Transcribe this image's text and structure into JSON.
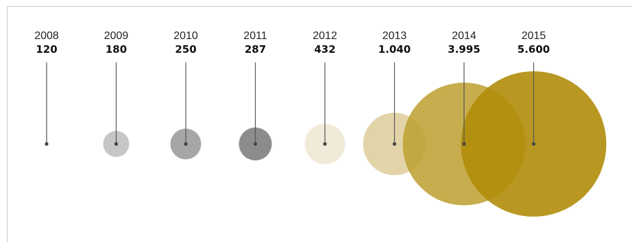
{
  "chart_data": {
    "type": "bubble-timeline",
    "title": "",
    "xlabel": "",
    "ylabel": "",
    "points": [
      {
        "year": "2008",
        "value": 120,
        "value_label": "120",
        "color": "#9a9a9a",
        "opacity": 0.0
      },
      {
        "year": "2009",
        "value": 180,
        "value_label": "180",
        "color": "#c6c6c6",
        "opacity": 1.0
      },
      {
        "year": "2010",
        "value": 250,
        "value_label": "250",
        "color": "#a6a6a6",
        "opacity": 1.0
      },
      {
        "year": "2011",
        "value": 287,
        "value_label": "287",
        "color": "#8c8c8c",
        "opacity": 1.0
      },
      {
        "year": "2012",
        "value": 432,
        "value_label": "432",
        "color": "#f0ead8",
        "opacity": 1.0
      },
      {
        "year": "2013",
        "value": 1040,
        "value_label": "1.040",
        "color": "#ddcc99",
        "opacity": 0.85
      },
      {
        "year": "2014",
        "value": 3995,
        "value_label": "3.995",
        "color": "#bd9f2e",
        "opacity": 0.85
      },
      {
        "year": "2015",
        "value": 5600,
        "value_label": "5.600",
        "color": "#b08d0a",
        "opacity": 0.9
      }
    ],
    "legend": "none",
    "grid": false
  }
}
